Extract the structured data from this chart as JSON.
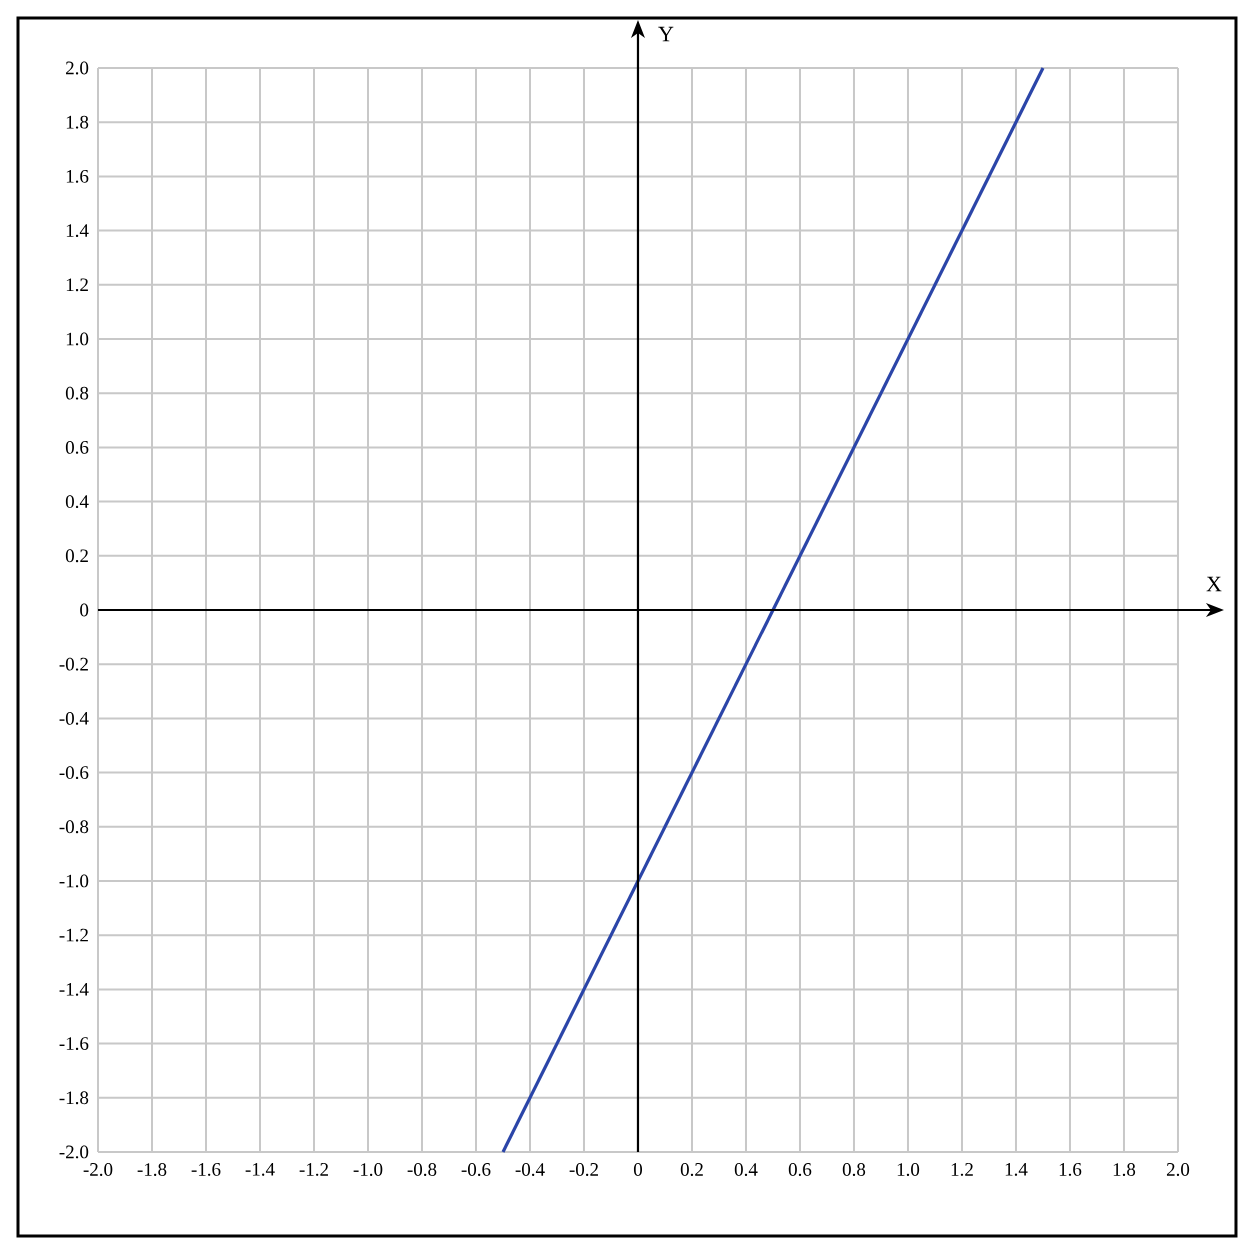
{
  "chart_data": {
    "type": "line",
    "xlabel": "X",
    "ylabel": "Y",
    "x": [
      -0.5,
      1.5
    ],
    "series": [
      {
        "color": "#2b45a8",
        "values": [
          -2,
          2
        ]
      }
    ],
    "xlim": [
      -2,
      2
    ],
    "ylim": [
      -2,
      2
    ],
    "xticks": [
      {
        "value": -2,
        "label": "-2.0"
      },
      -1.8,
      -1.6,
      -1.4,
      -1.2,
      {
        "value": -1,
        "label": "-1.0"
      },
      -0.8,
      -0.6,
      -0.4,
      -0.2,
      0,
      0.2,
      0.4,
      0.6,
      0.8,
      {
        "value": 1,
        "label": "1.0"
      },
      1.2,
      1.4,
      1.6,
      1.8,
      {
        "value": 2,
        "label": "2.0"
      }
    ],
    "yticks": [
      {
        "value": -2,
        "label": "-2.0"
      },
      -1.8,
      -1.6,
      -1.4,
      -1.2,
      {
        "value": -1,
        "label": "-1.0"
      },
      -0.8,
      -0.6,
      -0.4,
      -0.2,
      0,
      0.2,
      0.4,
      0.6,
      0.8,
      {
        "value": 1,
        "label": "1.0"
      },
      1.2,
      1.4,
      1.6,
      1.8,
      {
        "value": 2,
        "label": "2.0"
      }
    ],
    "grid": true,
    "marker": "none",
    "line_style": "solid"
  }
}
